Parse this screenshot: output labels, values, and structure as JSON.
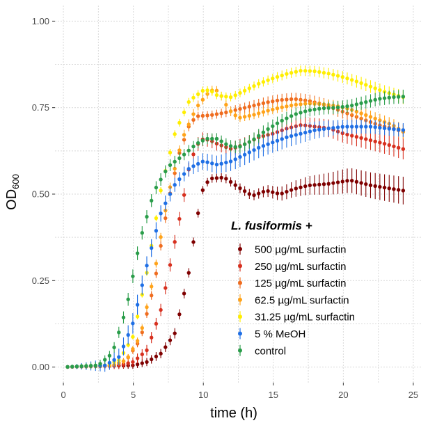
{
  "chart_data": {
    "type": "scatter",
    "title": "",
    "xlabel": "time (h)",
    "ylabel_main": "OD",
    "ylabel_sub": "600",
    "xlim": [
      0,
      25
    ],
    "ylim": [
      0,
      1
    ],
    "xticks": [
      0,
      5,
      10,
      15,
      20,
      25
    ],
    "yticks": [
      0.0,
      0.25,
      0.5,
      0.75,
      1.0
    ],
    "xtick_labels": [
      "0",
      "5",
      "10",
      "15",
      "20",
      "25"
    ],
    "ytick_labels": [
      "0.00",
      "0.25",
      "0.50",
      "0.75",
      "1.00"
    ],
    "grid": true,
    "legend_title": "L. fusiformis +",
    "legend_position": "right-center",
    "time_start": 0.3,
    "time_end": 24.3,
    "time_step": 0.333,
    "series": [
      {
        "name": "500 µg/mL surfactin",
        "color": "#7f0000",
        "curve": [
          [
            0,
            0.0
          ],
          [
            5,
            0.005
          ],
          [
            6,
            0.015
          ],
          [
            7,
            0.04
          ],
          [
            8,
            0.1
          ],
          [
            9,
            0.28
          ],
          [
            9.5,
            0.42
          ],
          [
            10,
            0.52
          ],
          [
            10.5,
            0.545
          ],
          [
            11.5,
            0.548
          ],
          [
            12.5,
            0.52
          ],
          [
            13.5,
            0.495
          ],
          [
            14.5,
            0.51
          ],
          [
            15.5,
            0.5
          ],
          [
            16.5,
            0.515
          ],
          [
            17.5,
            0.525
          ],
          [
            19,
            0.53
          ],
          [
            20.5,
            0.54
          ],
          [
            22,
            0.525
          ],
          [
            24.3,
            0.51
          ]
        ],
        "err": [
          [
            0,
            0.002
          ],
          [
            8,
            0.015
          ],
          [
            10,
            0.012
          ],
          [
            14,
            0.015
          ],
          [
            17,
            0.025
          ],
          [
            20,
            0.035
          ],
          [
            24.3,
            0.04
          ]
        ]
      },
      {
        "name": "250 µg/mL surfactin",
        "color": "#d7301f",
        "curve": [
          [
            0,
            0.0
          ],
          [
            4,
            0.005
          ],
          [
            5,
            0.015
          ],
          [
            6,
            0.05
          ],
          [
            7,
            0.17
          ],
          [
            8,
            0.37
          ],
          [
            8.5,
            0.47
          ],
          [
            9,
            0.58
          ],
          [
            9.5,
            0.64
          ],
          [
            10,
            0.66
          ],
          [
            10.5,
            0.655
          ],
          [
            11,
            0.645
          ],
          [
            12,
            0.63
          ],
          [
            13,
            0.645
          ],
          [
            14,
            0.665
          ],
          [
            15,
            0.675
          ],
          [
            16,
            0.69
          ],
          [
            17,
            0.7
          ],
          [
            18,
            0.695
          ],
          [
            19,
            0.69
          ],
          [
            20,
            0.675
          ],
          [
            21,
            0.665
          ],
          [
            22,
            0.655
          ],
          [
            23,
            0.645
          ],
          [
            24.3,
            0.63
          ]
        ],
        "err": [
          [
            0,
            0.002
          ],
          [
            8,
            0.02
          ],
          [
            10,
            0.02
          ],
          [
            14,
            0.02
          ],
          [
            18,
            0.025
          ],
          [
            24.3,
            0.03
          ]
        ]
      },
      {
        "name": "125 µg/mL surfactin",
        "color": "#ef6c1f",
        "curve": [
          [
            0,
            0.0
          ],
          [
            3.5,
            0.005
          ],
          [
            4.5,
            0.02
          ],
          [
            5.5,
            0.08
          ],
          [
            6.5,
            0.24
          ],
          [
            7.5,
            0.48
          ],
          [
            8.3,
            0.62
          ],
          [
            9,
            0.7
          ],
          [
            9.5,
            0.725
          ],
          [
            10.5,
            0.728
          ],
          [
            11.5,
            0.735
          ],
          [
            12.5,
            0.745
          ],
          [
            13.5,
            0.755
          ],
          [
            14.5,
            0.765
          ],
          [
            15.5,
            0.772
          ],
          [
            16.5,
            0.775
          ],
          [
            17.5,
            0.77
          ],
          [
            18.5,
            0.76
          ],
          [
            19.5,
            0.745
          ],
          [
            20.5,
            0.73
          ],
          [
            21.5,
            0.715
          ],
          [
            22.5,
            0.7
          ],
          [
            23.5,
            0.69
          ],
          [
            24.3,
            0.68
          ]
        ],
        "err": [
          [
            0,
            0.002
          ],
          [
            8,
            0.015
          ],
          [
            10,
            0.012
          ],
          [
            16,
            0.018
          ],
          [
            20,
            0.02
          ],
          [
            24.3,
            0.022
          ]
        ]
      },
      {
        "name": "62.5 µg/mL surfactin",
        "color": "#ffa31a",
        "curve": [
          [
            0,
            0.0
          ],
          [
            3.5,
            0.005
          ],
          [
            4.5,
            0.02
          ],
          [
            5.5,
            0.09
          ],
          [
            6.5,
            0.27
          ],
          [
            7.5,
            0.5
          ],
          [
            8.5,
            0.66
          ],
          [
            9.5,
            0.75
          ],
          [
            10.3,
            0.79
          ],
          [
            10.8,
            0.805
          ],
          [
            11.2,
            0.79
          ],
          [
            11.8,
            0.745
          ],
          [
            12.5,
            0.72
          ],
          [
            13.5,
            0.728
          ],
          [
            14.5,
            0.74
          ],
          [
            15.5,
            0.75
          ],
          [
            16.5,
            0.758
          ],
          [
            17.5,
            0.762
          ],
          [
            18.5,
            0.76
          ],
          [
            19.5,
            0.755
          ],
          [
            20.5,
            0.745
          ],
          [
            21.5,
            0.73
          ],
          [
            22.5,
            0.715
          ],
          [
            23.5,
            0.7
          ],
          [
            24.3,
            0.68
          ]
        ],
        "err": [
          [
            0,
            0.002
          ],
          [
            9,
            0.015
          ],
          [
            12,
            0.012
          ],
          [
            18,
            0.015
          ],
          [
            24.3,
            0.02
          ]
        ]
      },
      {
        "name": "31.25 µg/mL surfactin",
        "color": "#ffee00",
        "curve": [
          [
            0,
            0.0
          ],
          [
            3,
            0.005
          ],
          [
            4,
            0.02
          ],
          [
            5,
            0.09
          ],
          [
            6,
            0.28
          ],
          [
            7,
            0.52
          ],
          [
            8,
            0.68
          ],
          [
            9,
            0.77
          ],
          [
            10,
            0.8
          ],
          [
            10.5,
            0.8
          ],
          [
            11,
            0.785
          ],
          [
            12,
            0.78
          ],
          [
            13,
            0.8
          ],
          [
            14,
            0.82
          ],
          [
            15,
            0.835
          ],
          [
            16,
            0.848
          ],
          [
            17,
            0.857
          ],
          [
            18,
            0.855
          ],
          [
            19,
            0.848
          ],
          [
            20,
            0.838
          ],
          [
            21,
            0.825
          ],
          [
            22,
            0.81
          ],
          [
            23,
            0.795
          ],
          [
            24.3,
            0.78
          ]
        ],
        "err": [
          [
            0,
            0.002
          ],
          [
            9,
            0.012
          ],
          [
            12,
            0.012
          ],
          [
            17,
            0.015
          ],
          [
            24.3,
            0.02
          ]
        ]
      },
      {
        "name": "5 % MeOH",
        "color": "#1f6fe5",
        "curve": [
          [
            0,
            0.0
          ],
          [
            3,
            0.005
          ],
          [
            4,
            0.03
          ],
          [
            5,
            0.13
          ],
          [
            6,
            0.3
          ],
          [
            7,
            0.45
          ],
          [
            8,
            0.53
          ],
          [
            9,
            0.575
          ],
          [
            10,
            0.595
          ],
          [
            11,
            0.585
          ],
          [
            12,
            0.595
          ],
          [
            13,
            0.615
          ],
          [
            14,
            0.635
          ],
          [
            15,
            0.65
          ],
          [
            16,
            0.665
          ],
          [
            17,
            0.675
          ],
          [
            18,
            0.685
          ],
          [
            19,
            0.69
          ],
          [
            20,
            0.695
          ],
          [
            21,
            0.695
          ],
          [
            22,
            0.695
          ],
          [
            23,
            0.69
          ],
          [
            24.3,
            0.685
          ]
        ],
        "err": [
          [
            0,
            0.002
          ],
          [
            5,
            0.03
          ],
          [
            8,
            0.02
          ],
          [
            13,
            0.03
          ],
          [
            16,
            0.03
          ],
          [
            20,
            0.02
          ],
          [
            24.3,
            0.02
          ]
        ]
      },
      {
        "name": "control",
        "color": "#2a9d4a",
        "curve": [
          [
            0,
            0.0
          ],
          [
            2.5,
            0.005
          ],
          [
            3.5,
            0.04
          ],
          [
            4.5,
            0.17
          ],
          [
            5.5,
            0.37
          ],
          [
            6.5,
            0.51
          ],
          [
            7.5,
            0.58
          ],
          [
            8.5,
            0.61
          ],
          [
            9.5,
            0.645
          ],
          [
            10.2,
            0.66
          ],
          [
            11,
            0.66
          ],
          [
            11.8,
            0.64
          ],
          [
            12.5,
            0.635
          ],
          [
            13.5,
            0.655
          ],
          [
            14.5,
            0.685
          ],
          [
            15.5,
            0.71
          ],
          [
            16.5,
            0.73
          ],
          [
            17.5,
            0.742
          ],
          [
            18.5,
            0.748
          ],
          [
            19.5,
            0.75
          ],
          [
            20.5,
            0.755
          ],
          [
            21.5,
            0.765
          ],
          [
            22.5,
            0.775
          ],
          [
            23.5,
            0.78
          ],
          [
            24.3,
            0.782
          ]
        ],
        "err": [
          [
            0,
            0.002
          ],
          [
            5,
            0.02
          ],
          [
            10,
            0.015
          ],
          [
            14,
            0.02
          ],
          [
            18,
            0.018
          ],
          [
            24.3,
            0.02
          ]
        ]
      }
    ]
  }
}
